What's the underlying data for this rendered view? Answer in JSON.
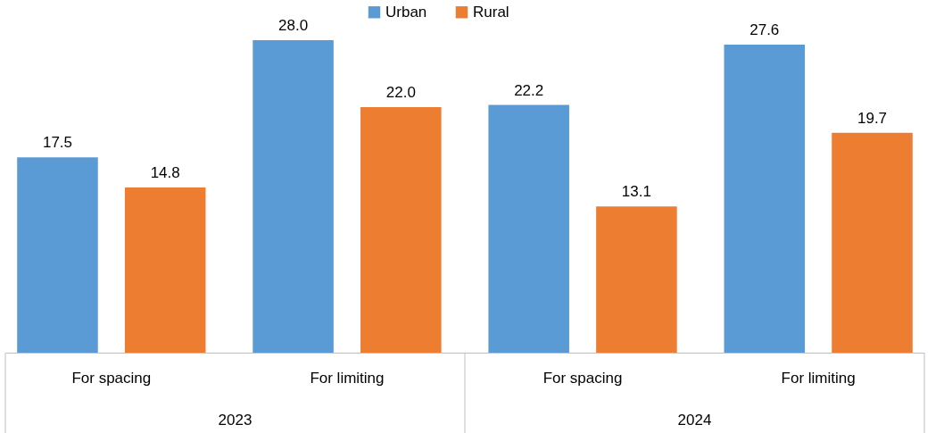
{
  "chart_data": {
    "type": "bar",
    "categories": [
      "For spacing",
      "For limiting",
      "For spacing",
      "For limiting"
    ],
    "series": [
      {
        "name": "Urban",
        "color": "#5b9bd5",
        "values": [
          17.5,
          28.0,
          22.2,
          27.6
        ],
        "value_labels": [
          "17.5",
          "28.0",
          "22.2",
          "27.6"
        ]
      },
      {
        "name": "Rural",
        "color": "#ed7d31",
        "values": [
          14.8,
          22.0,
          13.1,
          19.7
        ],
        "value_labels": [
          "14.8",
          "22.0",
          "13.1",
          "19.7"
        ]
      }
    ],
    "annotations": [
      "2023",
      "2024"
    ],
    "legend": "top",
    "grid": false
  }
}
